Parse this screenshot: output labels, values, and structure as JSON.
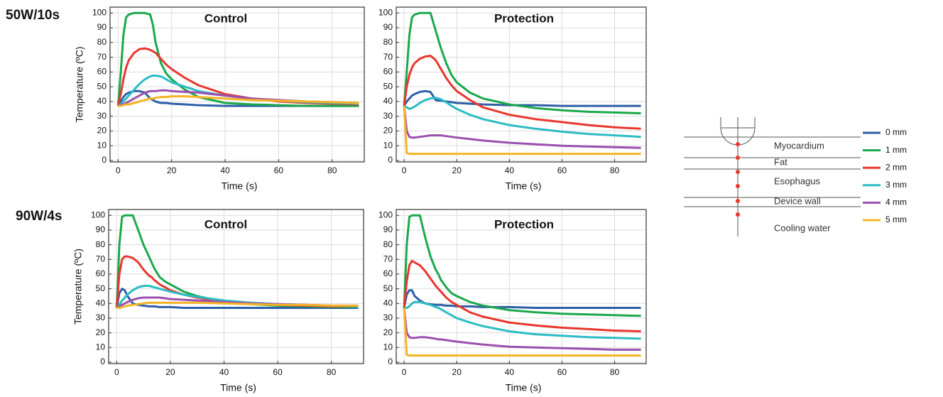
{
  "row_labels": [
    "50W/10s",
    "90W/4s"
  ],
  "legend": [
    {
      "name": "0 mm",
      "color": "#2d5fa8"
    },
    {
      "name": "1 mm",
      "color": "#1aa84a"
    },
    {
      "name": "2 mm",
      "color": "#e8372e"
    },
    {
      "name": "3 mm",
      "color": "#2bbcc4"
    },
    {
      "name": "4 mm",
      "color": "#9b4fae"
    },
    {
      "name": "5 mm",
      "color": "#f5b324"
    }
  ],
  "diagram": {
    "layers": [
      "Myocardium",
      "Fat",
      "Esophagus",
      "Device wall",
      "Cooling water"
    ]
  },
  "chart_data": [
    {
      "type": "line",
      "title": "Control",
      "title_color": "#e8372e",
      "xlabel": "Time (s)",
      "ylabel": "Temperature (ºC)",
      "xlim": [
        -3,
        92
      ],
      "ylim": [
        -1,
        104
      ],
      "xticks": [
        0,
        20,
        40,
        60,
        80
      ],
      "yticks": [
        0,
        10,
        20,
        30,
        40,
        50,
        60,
        70,
        80,
        90,
        100
      ],
      "grid": true,
      "x": [
        0,
        1,
        2,
        3,
        4,
        6,
        8,
        10,
        12,
        13,
        14,
        16,
        18,
        20,
        25,
        30,
        40,
        50,
        60,
        70,
        80,
        90
      ],
      "series": [
        {
          "color": "#2d5fa8",
          "values": [
            37,
            40,
            43,
            45,
            46,
            47,
            47,
            46,
            42,
            41,
            40,
            39,
            39,
            38.5,
            38,
            37.5,
            37,
            37,
            37,
            37,
            37,
            37
          ]
        },
        {
          "color": "#1aa84a",
          "values": [
            37,
            60,
            85,
            97,
            99,
            100,
            100,
            100,
            99,
            92,
            80,
            66,
            59,
            55,
            48,
            43,
            39,
            38,
            37.5,
            37,
            37,
            37
          ]
        },
        {
          "color": "#e8372e",
          "values": [
            37,
            45,
            55,
            63,
            68,
            73,
            75.5,
            76,
            75,
            74,
            73,
            69,
            65,
            62,
            56,
            51,
            45,
            42,
            40,
            39,
            38.5,
            38
          ]
        },
        {
          "color": "#2bbcc4",
          "values": [
            37,
            38,
            40,
            42,
            44,
            48,
            52,
            55,
            57,
            57.5,
            57.5,
            57,
            55,
            53,
            50,
            47,
            44,
            42,
            40.5,
            39.5,
            39,
            38.5
          ]
        },
        {
          "color": "#9b4fae",
          "values": [
            37,
            37.5,
            38,
            39,
            40,
            42,
            44,
            46,
            47,
            47,
            47,
            47.5,
            47.5,
            47,
            46.5,
            46,
            44,
            42,
            41,
            40,
            39.5,
            39
          ]
        },
        {
          "color": "#f5b324",
          "values": [
            37,
            37,
            37.5,
            38,
            38,
            39,
            40,
            41,
            42,
            42,
            42.5,
            43,
            43,
            43.5,
            43.5,
            43,
            42,
            41,
            40.5,
            40,
            39.5,
            39
          ]
        }
      ]
    },
    {
      "type": "line",
      "title": "Protection",
      "title_color": "#1d9ad6",
      "xlabel": "Time (s)",
      "xlim": [
        -3,
        92
      ],
      "ylim": [
        -1,
        104
      ],
      "xticks": [
        0,
        20,
        40,
        60,
        80
      ],
      "yticks": [
        0,
        10,
        20,
        30,
        40,
        50,
        60,
        70,
        80,
        90,
        100
      ],
      "grid": true,
      "x": [
        0,
        1,
        2,
        3,
        4,
        6,
        8,
        10,
        12,
        13,
        14,
        16,
        18,
        20,
        25,
        30,
        40,
        50,
        60,
        70,
        80,
        90
      ],
      "series": [
        {
          "color": "#2d5fa8",
          "values": [
            37,
            40,
            42,
            44,
            45,
            46.5,
            47,
            46.5,
            41,
            40.5,
            40.5,
            40,
            39.5,
            39,
            38.5,
            38,
            37.5,
            37.5,
            37,
            37,
            37,
            37
          ]
        },
        {
          "color": "#1aa84a",
          "values": [
            37,
            60,
            85,
            97,
            99,
            100,
            100,
            100,
            88,
            82,
            76,
            66,
            58,
            53,
            46,
            42,
            38,
            35.5,
            34,
            33,
            32.5,
            32
          ]
        },
        {
          "color": "#e8372e",
          "values": [
            37,
            50,
            58,
            63,
            66,
            69,
            70.5,
            71,
            68,
            65,
            62,
            56,
            51,
            47,
            41,
            36,
            31,
            28,
            26,
            24,
            22.5,
            21.5
          ]
        },
        {
          "color": "#2bbcc4",
          "values": [
            37,
            36,
            35,
            35.5,
            36.5,
            39,
            41,
            42,
            42.5,
            42,
            41.5,
            39.5,
            37,
            35,
            31,
            28,
            24,
            21.5,
            19.5,
            18,
            17,
            16
          ]
        },
        {
          "color": "#9b4fae",
          "values": [
            37,
            20,
            16,
            15.5,
            15.5,
            16,
            16.5,
            17,
            17,
            17,
            17,
            16.5,
            16,
            15.5,
            14.5,
            13.5,
            12,
            11,
            10,
            9.5,
            9,
            8.5
          ]
        },
        {
          "color": "#f5b324",
          "values": [
            37,
            5,
            4.5,
            4.5,
            4.5,
            4.5,
            4.5,
            4.5,
            4.5,
            4.5,
            4.5,
            4.5,
            4.5,
            4.5,
            4.5,
            4.5,
            4.5,
            4.5,
            4.5,
            4.5,
            4.5,
            4.5
          ]
        }
      ]
    },
    {
      "type": "line",
      "title": "Control",
      "title_color": "#e8372e",
      "xlabel": "Time (s)",
      "ylabel": "Temperature (ºC)",
      "xlim": [
        -3,
        92
      ],
      "ylim": [
        -1,
        104
      ],
      "xticks": [
        0,
        20,
        40,
        60,
        80
      ],
      "yticks": [
        0,
        10,
        20,
        30,
        40,
        50,
        60,
        70,
        80,
        90,
        100
      ],
      "grid": true,
      "x": [
        0,
        1,
        2,
        3,
        4,
        6,
        8,
        10,
        12,
        13,
        14,
        16,
        18,
        20,
        25,
        30,
        40,
        50,
        60,
        70,
        80,
        90
      ],
      "series": [
        {
          "color": "#2d5fa8",
          "values": [
            37,
            47,
            50,
            49,
            45,
            40,
            39,
            38.5,
            38,
            38,
            38,
            37.5,
            37.5,
            37.5,
            37,
            37,
            37,
            37,
            37,
            37,
            37,
            37
          ]
        },
        {
          "color": "#1aa84a",
          "values": [
            37,
            80,
            99,
            100,
            100,
            100,
            90,
            80,
            72,
            68,
            64,
            58,
            55,
            53,
            48,
            45,
            41,
            39.5,
            38.5,
            38,
            37.5,
            37.5
          ]
        },
        {
          "color": "#e8372e",
          "values": [
            37,
            60,
            70,
            72,
            72,
            71,
            68,
            63,
            59,
            58,
            56,
            53,
            51,
            49,
            46,
            44,
            41,
            40,
            39,
            38.5,
            38,
            38
          ]
        },
        {
          "color": "#2bbcc4",
          "values": [
            37,
            39,
            42,
            44,
            46,
            49,
            51,
            52,
            52,
            51.5,
            51,
            50,
            49,
            48,
            46,
            44.5,
            42,
            40.5,
            39.5,
            39,
            38.5,
            38
          ]
        },
        {
          "color": "#9b4fae",
          "values": [
            37,
            38,
            39,
            40,
            41,
            42.5,
            43.5,
            44,
            44,
            44,
            44,
            44,
            43.5,
            43,
            42.5,
            42,
            41,
            40,
            39.5,
            39,
            38.5,
            38.5
          ]
        },
        {
          "color": "#f5b324",
          "values": [
            37,
            37,
            37.5,
            38,
            38.5,
            39,
            39.5,
            40,
            40.5,
            40.5,
            40.5,
            40.5,
            40.5,
            40.5,
            40.5,
            40.5,
            40,
            39.5,
            39,
            39,
            38.5,
            38.5
          ]
        }
      ]
    },
    {
      "type": "line",
      "title": "Protection",
      "title_color": "#1d9ad6",
      "xlabel": "Time (s)",
      "xlim": [
        -3,
        92
      ],
      "ylim": [
        -1,
        104
      ],
      "xticks": [
        0,
        20,
        40,
        60,
        80
      ],
      "yticks": [
        0,
        10,
        20,
        30,
        40,
        50,
        60,
        70,
        80,
        90,
        100
      ],
      "grid": true,
      "x": [
        0,
        1,
        2,
        3,
        4,
        6,
        8,
        10,
        12,
        13,
        14,
        16,
        18,
        20,
        25,
        30,
        40,
        50,
        60,
        70,
        80,
        90
      ],
      "series": [
        {
          "color": "#2d5fa8",
          "values": [
            37,
            46,
            49,
            49,
            45,
            42,
            40,
            39.5,
            39,
            39,
            39,
            38.5,
            38.5,
            38,
            38,
            37.5,
            37.5,
            37,
            37,
            37,
            37,
            37
          ]
        },
        {
          "color": "#1aa84a",
          "values": [
            37,
            80,
            99,
            100,
            100,
            100,
            85,
            72,
            63,
            60,
            56,
            51,
            47,
            45,
            41,
            38.5,
            35.5,
            34,
            33,
            32.5,
            32,
            31.5
          ]
        },
        {
          "color": "#e8372e",
          "values": [
            37,
            55,
            66,
            69,
            68,
            66,
            62,
            57,
            52,
            50,
            48,
            44,
            41,
            39,
            34,
            31,
            27,
            25,
            23.5,
            22.5,
            21.5,
            21
          ]
        },
        {
          "color": "#2bbcc4",
          "values": [
            37,
            37,
            38,
            40,
            41,
            41,
            40,
            39,
            37.5,
            37,
            36,
            34,
            32,
            30,
            27,
            24.5,
            21,
            19,
            18,
            17,
            16.5,
            16
          ]
        },
        {
          "color": "#9b4fae",
          "values": [
            37,
            20,
            17,
            16.5,
            16.5,
            17,
            17,
            16.5,
            16,
            15.5,
            15.5,
            15,
            14.5,
            14,
            13,
            12,
            10.5,
            10,
            9.5,
            9,
            8.5,
            8.5
          ]
        },
        {
          "color": "#f5b324",
          "values": [
            37,
            5,
            4.5,
            4.5,
            4.5,
            4.5,
            4.5,
            4.5,
            4.5,
            4.5,
            4.5,
            4.5,
            4.5,
            4.5,
            4.5,
            4.5,
            4.5,
            4.5,
            4.5,
            4.5,
            4.5,
            4.5
          ]
        }
      ]
    }
  ]
}
